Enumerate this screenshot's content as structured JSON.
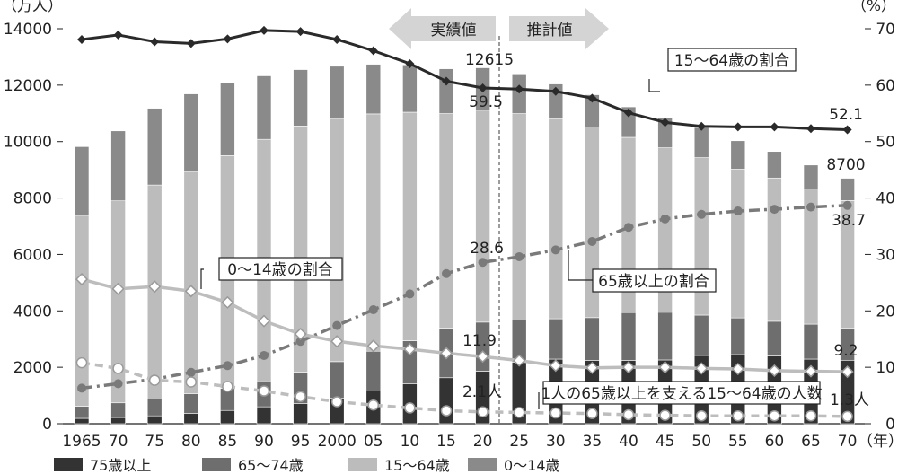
{
  "chart_data": {
    "type": "bar",
    "stacked": true,
    "y_left_unit": "（万人）",
    "y_right_unit": "（%）",
    "x_unit": "（年）",
    "ylim_left": [
      0,
      14000
    ],
    "ylim_right": [
      0,
      70
    ],
    "y_left_ticks": [
      "0",
      "2000",
      "4000",
      "6000",
      "8000",
      "10000",
      "12000",
      "14000"
    ],
    "y_right_ticks": [
      "0",
      "10",
      "20",
      "30",
      "40",
      "50",
      "60",
      "70"
    ],
    "categories": [
      "1965",
      "70",
      "75",
      "80",
      "85",
      "90",
      "95",
      "2000",
      "05",
      "10",
      "15",
      "20",
      "25",
      "30",
      "35",
      "40",
      "45",
      "50",
      "55",
      "60",
      "65",
      "70"
    ],
    "bar_series": [
      {
        "name": "75歳以上",
        "color": "#333333",
        "values": [
          190,
          220,
          280,
          370,
          470,
          600,
          720,
          900,
          1160,
          1420,
          1630,
          1860,
          2180,
          2290,
          2240,
          2240,
          2260,
          2420,
          2450,
          2400,
          2290,
          2250
        ]
      },
      {
        "name": "65〜74歳",
        "color": "#6e6e6e",
        "values": [
          430,
          520,
          600,
          690,
          780,
          890,
          1110,
          1300,
          1410,
          1520,
          1760,
          1740,
          1500,
          1430,
          1520,
          1700,
          1690,
          1430,
          1300,
          1230,
          1240,
          1130
        ]
      },
      {
        "name": "15〜64歳",
        "color": "#bcbcbc",
        "values": [
          6740,
          7160,
          7580,
          7880,
          8250,
          8590,
          8720,
          8620,
          8410,
          8100,
          7600,
          7510,
          7310,
          7080,
          6760,
          6210,
          5830,
          5580,
          5270,
          5080,
          4790,
          4530
        ]
      },
      {
        "name": "0〜14歳",
        "color": "#8a8a8a",
        "values": [
          2460,
          2480,
          2720,
          2750,
          2600,
          2250,
          2000,
          1850,
          1760,
          1680,
          1590,
          1505,
          1410,
          1240,
          1140,
          1080,
          1080,
          1070,
          1010,
          940,
          850,
          790
        ]
      }
    ],
    "line_series": [
      {
        "name": "15〜64歳の割合",
        "style": "solid-black",
        "marker": "filled-diamond",
        "values": [
          68.1,
          68.9,
          67.7,
          67.4,
          68.2,
          69.7,
          69.5,
          68.1,
          66.1,
          63.8,
          60.7,
          59.5,
          59.3,
          58.9,
          57.7,
          55.1,
          53.4,
          52.7,
          52.6,
          52.6,
          52.3,
          52.1
        ]
      },
      {
        "name": "65歳以上の割合",
        "style": "dash-dot-gray",
        "marker": "gray-circle",
        "values": [
          6.3,
          7.1,
          7.9,
          9.1,
          10.3,
          12.1,
          14.6,
          17.4,
          20.2,
          23.0,
          26.6,
          28.6,
          29.6,
          30.8,
          32.3,
          34.8,
          36.3,
          37.1,
          37.7,
          38.0,
          38.4,
          38.7
        ]
      },
      {
        "name": "0〜14歳の割合",
        "style": "solid-lightgray",
        "marker": "open-diamond",
        "values": [
          25.6,
          23.9,
          24.3,
          23.5,
          21.5,
          18.2,
          15.9,
          14.6,
          13.8,
          13.2,
          12.5,
          11.9,
          11.2,
          10.3,
          9.9,
          10.0,
          10.0,
          9.8,
          9.7,
          9.4,
          9.3,
          9.2
        ]
      },
      {
        "name": "1人の65歳以上を支える15〜64歳の人数",
        "style": "dashed-lightgray",
        "marker": "open-circle",
        "values": [
          10.8,
          9.8,
          7.7,
          7.4,
          6.6,
          5.8,
          4.8,
          3.9,
          3.3,
          2.8,
          2.3,
          2.1,
          2.0,
          1.9,
          1.8,
          1.6,
          1.5,
          1.4,
          1.4,
          1.4,
          1.4,
          1.3
        ]
      }
    ],
    "header_labels": {
      "actual": "実績値",
      "projected": "推計値"
    },
    "annotations": {
      "total_2020": "12615",
      "total_2070": "8700",
      "wa_2020": "59.5",
      "wa_2070": "52.1",
      "el_2020": "28.6",
      "el_2070": "38.7",
      "ch_2020": "11.9",
      "ch_2070": "9.2",
      "sup_2020": "2.1人",
      "sup_2070": "1.3人"
    },
    "callouts": {
      "working_age": "15〜64歳の割合",
      "children": "0〜14歳の割合",
      "elderly": "65歳以上の割合",
      "support": "1人の65歳以上を支える15〜64歳の人数"
    },
    "legend": [
      "75歳以上",
      "65〜74歳",
      "15〜64歳",
      "0〜14歳"
    ]
  }
}
